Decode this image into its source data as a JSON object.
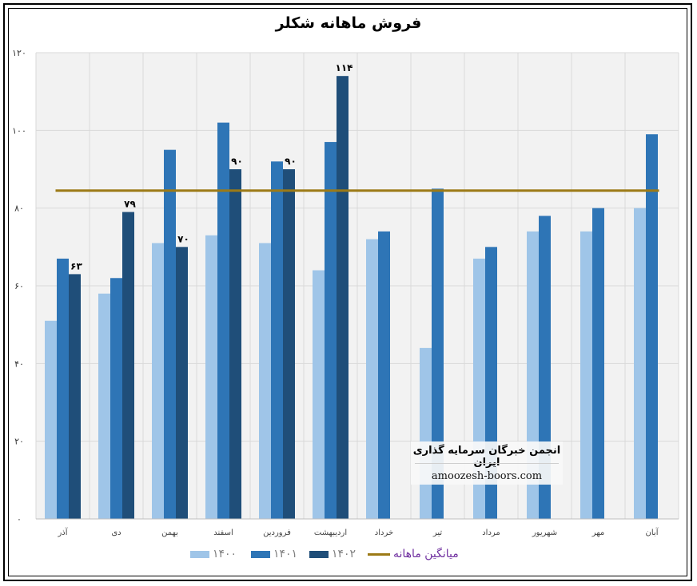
{
  "chart_data": {
    "type": "bar",
    "title": "فروش ماهانه شکلر",
    "categories": [
      "آذر",
      "دی",
      "بهمن",
      "اسفند",
      "فروردین",
      "اردیبهشت",
      "خرداد",
      "تیر",
      "مرداد",
      "شهریور",
      "مهر",
      "آبان"
    ],
    "series": [
      {
        "name": "۱۴۰۰",
        "color": "#9fc5e8",
        "values": [
          51,
          58,
          71,
          73,
          71,
          64,
          72,
          44,
          67,
          74,
          74,
          80
        ]
      },
      {
        "name": "۱۴۰۱",
        "color": "#2e75b6",
        "values": [
          67,
          62,
          95,
          102,
          92,
          97,
          74,
          85,
          70,
          78,
          80,
          99
        ]
      },
      {
        "name": "۱۴۰۲",
        "color": "#1f4e79",
        "values": [
          63,
          79,
          70,
          90,
          90,
          114,
          null,
          null,
          null,
          null,
          null,
          null
        ],
        "data_labels": [
          "۶۳",
          "۷۹",
          "۷۰",
          "۹۰",
          "۹۰",
          "۱۱۴"
        ]
      }
    ],
    "average_line": {
      "name": "میانگین ماهانه",
      "value": 84.5,
      "color": "#9c7a16"
    },
    "ylim": [
      0,
      120
    ],
    "yticks": [
      0,
      20,
      40,
      60,
      80,
      100,
      120
    ],
    "ytick_labels": [
      "۰",
      "۲۰",
      "۴۰",
      "۶۰",
      "۸۰",
      "۱۰۰",
      "۱۲۰"
    ],
    "grid": true,
    "legend_position": "bottom"
  },
  "watermark": {
    "title": "انجمن خبرگان سرمایه گذاری ایران",
    "url": "amoozesh-boors.com"
  }
}
